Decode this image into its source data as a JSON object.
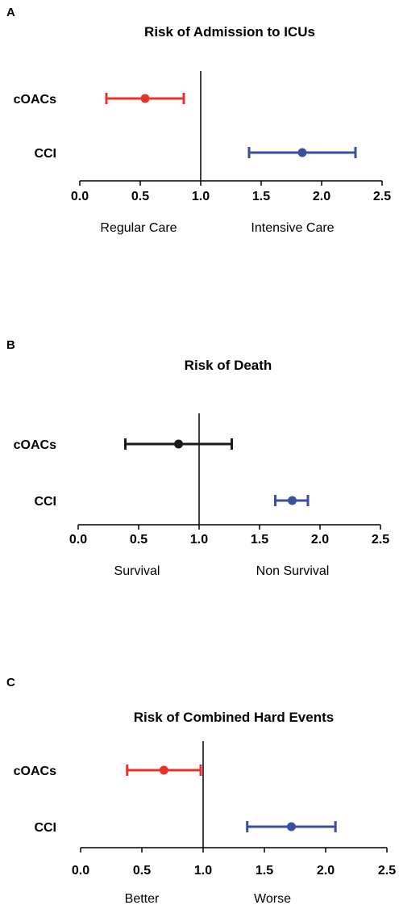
{
  "chart_data": [
    {
      "type": "forest",
      "panel": "A",
      "title": "Risk of Admission to ICUs",
      "xlim": [
        0,
        2.5
      ],
      "ticks": [
        "0.0",
        "0.5",
        "1.0",
        "1.5",
        "2.0",
        "2.5"
      ],
      "tick_values": [
        0,
        0.5,
        1.0,
        1.5,
        2.0,
        2.5
      ],
      "reference_line": 1.0,
      "interpretation": {
        "left": "Regular Care",
        "right": "Intensive Care"
      },
      "rows": [
        {
          "label": "cOACs",
          "estimate": 0.54,
          "lower": 0.22,
          "upper": 0.86,
          "color": "#e8332a"
        },
        {
          "label": "CCI",
          "estimate": 1.84,
          "lower": 1.4,
          "upper": 2.28,
          "color": "#3a4fa0"
        }
      ]
    },
    {
      "type": "forest",
      "panel": "B",
      "title": "Risk of Death",
      "xlim": [
        0,
        2.5
      ],
      "ticks": [
        "0.0",
        "0.5",
        "1.0",
        "1.5",
        "2.0",
        "2.5"
      ],
      "tick_values": [
        0,
        0.5,
        1.0,
        1.5,
        2.0,
        2.5
      ],
      "reference_line": 1.0,
      "interpretation": {
        "left": "Survival",
        "right": "Non  Survival"
      },
      "rows": [
        {
          "label": "cOACs",
          "estimate": 0.83,
          "lower": 0.39,
          "upper": 1.27,
          "color": "#1a1a1a"
        },
        {
          "label": "CCI",
          "estimate": 1.77,
          "lower": 1.63,
          "upper": 1.9,
          "color": "#3a4fa0"
        }
      ]
    },
    {
      "type": "forest",
      "panel": "C",
      "title": "Risk of Combined Hard Events",
      "xlim": [
        0,
        2.5
      ],
      "ticks": [
        "0.0",
        "0.5",
        "1.0",
        "1.5",
        "2.0",
        "2.5"
      ],
      "tick_values": [
        0,
        0.5,
        1.0,
        1.5,
        2.0,
        2.5
      ],
      "reference_line": 1.0,
      "interpretation": {
        "left": "Better",
        "right": "Worse"
      },
      "rows": [
        {
          "label": "cOACs",
          "estimate": 0.68,
          "lower": 0.38,
          "upper": 0.98,
          "color": "#e8332a"
        },
        {
          "label": "CCI",
          "estimate": 1.72,
          "lower": 1.36,
          "upper": 2.08,
          "color": "#3a4fa0"
        }
      ]
    }
  ]
}
